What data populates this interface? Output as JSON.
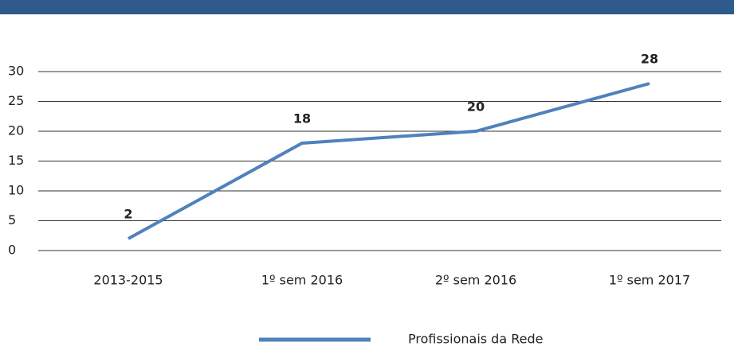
{
  "chart_data": {
    "type": "line",
    "categories": [
      "2013-2015",
      "1º sem 2016",
      "2º sem 2016",
      "1º sem 2017"
    ],
    "series": [
      {
        "name": "Profissionais  da Rede",
        "color": "#4f81bd",
        "values": [
          2,
          18,
          20,
          28
        ]
      }
    ],
    "ylim": [
      0,
      30
    ],
    "yticks": [
      0,
      5,
      10,
      15,
      20,
      25,
      30
    ],
    "grid": true,
    "legend": "bottom"
  }
}
